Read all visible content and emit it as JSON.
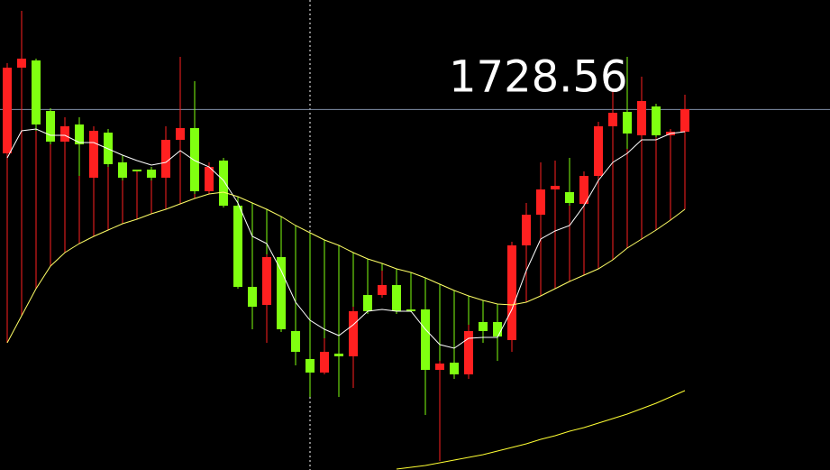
{
  "chart_data": {
    "type": "candlestick",
    "up_color": "#ff2020",
    "down_color": "#80ff10",
    "ylim": [
      1688.6,
      1740.7
    ],
    "open": [
      1723.7,
      1733.2,
      1734.0,
      1728.4,
      1725.0,
      1726.9,
      1721.0,
      1726.0,
      1722.7,
      1721.9,
      1721.9,
      1721.0,
      1725.2,
      1726.5,
      1719.5,
      1722.9,
      1717.9,
      1708.9,
      1706.9,
      1712.2,
      1704.0,
      1700.9,
      1699.4,
      1701.5,
      1701.2,
      1708.0,
      1708.0,
      1709.1,
      1706.4,
      1706.4,
      1699.7,
      1700.5,
      1699.2,
      1705.0,
      1705.0,
      1703.0,
      1713.5,
      1716.9,
      1719.7,
      1719.4,
      1718.1,
      1721.2,
      1726.7,
      1728.3,
      1725.7,
      1728.9,
      1725.7,
      1726.1
    ],
    "high": [
      1733.7,
      1739.5,
      1734.2,
      1728.7,
      1727.7,
      1727.7,
      1726.7,
      1726.4,
      1723.5,
      1721.9,
      1722.2,
      1726.7,
      1734.4,
      1731.7,
      1722.7,
      1723.2,
      1718.2,
      1710.7,
      1712.5,
      1712.5,
      1704.2,
      1701.7,
      1703.2,
      1702.7,
      1706.7,
      1708.7,
      1710.7,
      1710.7,
      1706.7,
      1707.7,
      1700.7,
      1701.2,
      1704.7,
      1706.7,
      1706.7,
      1713.9,
      1718.2,
      1722.7,
      1722.9,
      1723.2,
      1721.7,
      1727.2,
      1730.7,
      1734.4,
      1732.2,
      1729.2,
      1726.4,
      1730.2
    ],
    "low": [
      1723.2,
      1726.7,
      1726.2,
      1724.7,
      1724.7,
      1721.2,
      1720.7,
      1722.2,
      1720.7,
      1721.8,
      1720.7,
      1720.9,
      1719.2,
      1719.2,
      1719.2,
      1717.7,
      1708.7,
      1704.2,
      1702.7,
      1703.9,
      1700.2,
      1696.7,
      1699.2,
      1696.7,
      1697.7,
      1705.9,
      1707.7,
      1705.9,
      1706.1,
      1694.7,
      1689.6,
      1698.7,
      1698.7,
      1702.7,
      1700.7,
      1701.7,
      1713.2,
      1716.2,
      1719.5,
      1717.9,
      1717.9,
      1721.0,
      1724.2,
      1724.2,
      1725.5,
      1725.5,
      1725.5,
      1726.0
    ],
    "close": [
      1733.2,
      1734.2,
      1726.9,
      1725.0,
      1726.7,
      1724.7,
      1726.2,
      1722.5,
      1721.0,
      1721.8,
      1721.0,
      1725.2,
      1726.5,
      1719.5,
      1722.2,
      1717.9,
      1708.9,
      1706.7,
      1712.2,
      1704.2,
      1701.7,
      1699.4,
      1701.7,
      1701.2,
      1706.2,
      1706.2,
      1709.1,
      1706.2,
      1706.3,
      1699.7,
      1700.4,
      1699.2,
      1704.0,
      1704.0,
      1703.4,
      1713.5,
      1716.9,
      1719.7,
      1720.1,
      1718.2,
      1721.2,
      1726.7,
      1728.2,
      1725.9,
      1729.5,
      1725.7,
      1726.1,
      1728.6
    ],
    "lines": [
      {
        "color": "#ffffff",
        "values": [
          1723.2,
          1726.2,
          1726.4,
          1725.7,
          1725.7,
          1724.9,
          1724.9,
          1724.2,
          1723.5,
          1722.9,
          1722.4,
          1722.7,
          1724.0,
          1722.9,
          1722.2,
          1720.7,
          1718.2,
          1714.5,
          1713.7,
          1710.7,
          1707.2,
          1705.2,
          1704.2,
          1703.5,
          1704.7,
          1706.2,
          1706.4,
          1706.2,
          1706.2,
          1704.2,
          1702.5,
          1702.1,
          1703.2,
          1703.3,
          1703.3,
          1706.4,
          1710.7,
          1714.2,
          1715.1,
          1715.7,
          1717.9,
          1720.7,
          1722.7,
          1723.7,
          1725.2,
          1725.2,
          1725.9,
          1726.1
        ]
      },
      {
        "color": "#ffff66",
        "values": [
          1702.7,
          1705.7,
          1708.7,
          1711.2,
          1712.7,
          1713.7,
          1714.5,
          1715.2,
          1715.9,
          1716.4,
          1717.0,
          1717.5,
          1718.1,
          1718.7,
          1719.2,
          1719.4,
          1718.9,
          1718.2,
          1717.5,
          1716.7,
          1715.7,
          1714.9,
          1714.1,
          1713.5,
          1712.7,
          1712.0,
          1711.5,
          1710.9,
          1710.5,
          1709.9,
          1709.2,
          1708.5,
          1707.9,
          1707.4,
          1707.0,
          1706.9,
          1707.2,
          1707.9,
          1708.7,
          1709.5,
          1710.2,
          1710.9,
          1711.9,
          1713.2,
          1714.2,
          1715.2,
          1716.3,
          1717.5
        ]
      },
      {
        "color": "#ffff33",
        "values": [
          null,
          null,
          null,
          null,
          null,
          null,
          null,
          null,
          null,
          null,
          null,
          null,
          null,
          null,
          null,
          null,
          null,
          null,
          null,
          null,
          null,
          null,
          null,
          null,
          null,
          null,
          null,
          1688.7,
          1688.9,
          1689.1,
          1689.4,
          1689.7,
          1690.0,
          1690.3,
          1690.7,
          1691.1,
          1691.5,
          1692.0,
          1692.4,
          1692.9,
          1693.3,
          1693.8,
          1694.3,
          1694.8,
          1695.4,
          1696.0,
          1696.7,
          1697.4
        ]
      }
    ],
    "crosshair": {
      "value": 1728.56,
      "label": "1728.56"
    }
  }
}
